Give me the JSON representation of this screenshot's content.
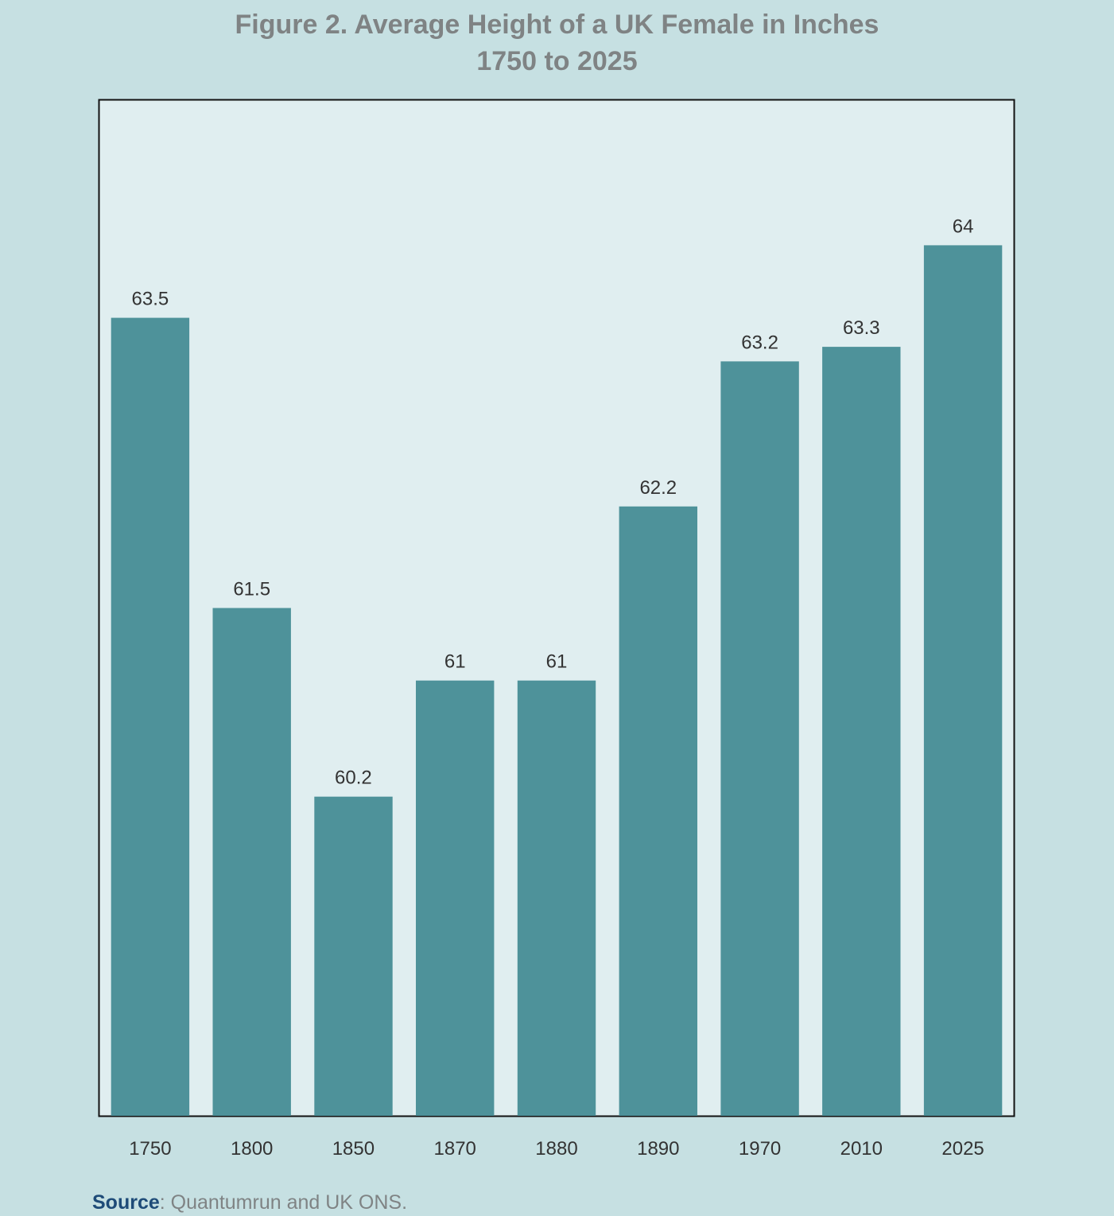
{
  "chart_data": {
    "type": "bar",
    "title": "Figure 2. Average Height of a UK Female in Inches",
    "subtitle": "1750 to 2025",
    "categories": [
      "1750",
      "1800",
      "1850",
      "1870",
      "1880",
      "1890",
      "1970",
      "2010",
      "2025"
    ],
    "values": [
      63.5,
      61.5,
      60.2,
      61,
      61,
      62.2,
      63.2,
      63.3,
      64
    ],
    "value_labels": [
      "63.5",
      "61.5",
      "60.2",
      "61",
      "61",
      "62.2",
      "63.2",
      "63.3",
      "64"
    ],
    "xlabel": "",
    "ylabel": "",
    "ylim": [
      58,
      65
    ],
    "grid": false,
    "legend": "none",
    "colors": {
      "bar": "#4e929a",
      "plot_background": "#e0eef0",
      "page_background": "#c6e0e2",
      "title": "#7f8384",
      "label": "#333333"
    }
  },
  "source": {
    "label": "Source",
    "text": "Quantumrun and UK ONS."
  }
}
